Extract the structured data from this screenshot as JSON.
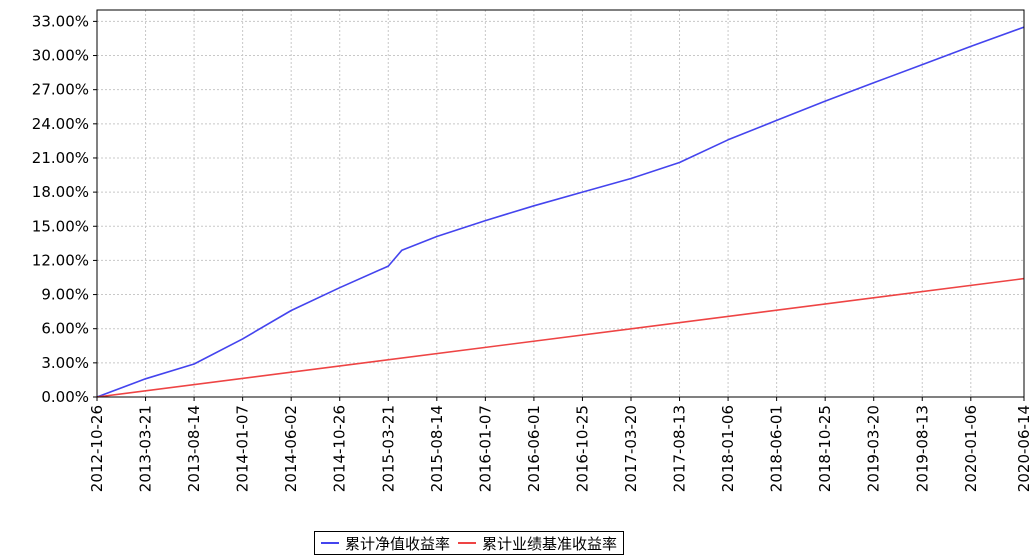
{
  "chart_data": {
    "type": "line",
    "title": "",
    "xlabel": "",
    "ylabel": "",
    "x_ticks": [
      "2012-10-26",
      "2013-03-21",
      "2013-08-14",
      "2014-01-07",
      "2014-06-02",
      "2014-10-26",
      "2015-03-21",
      "2015-08-14",
      "2016-01-07",
      "2016-06-01",
      "2016-10-25",
      "2017-03-20",
      "2017-08-13",
      "2018-01-06",
      "2018-06-01",
      "2018-10-25",
      "2019-03-20",
      "2019-08-13",
      "2020-01-06",
      "2020-06-14"
    ],
    "y_ticks": [
      "0.00%",
      "3.00%",
      "6.00%",
      "9.00%",
      "12.00%",
      "15.00%",
      "18.00%",
      "21.00%",
      "24.00%",
      "27.00%",
      "30.00%",
      "33.00%"
    ],
    "ylim": [
      0,
      34
    ],
    "y_unit": "%",
    "grid": true,
    "legend_position": "bottom",
    "series": [
      {
        "name": "累计净值收益率",
        "color": "#4444ee",
        "x": [
          "2012-10-26",
          "2013-03-21",
          "2013-08-14",
          "2014-01-07",
          "2014-06-02",
          "2014-10-26",
          "2015-03-21",
          "2015-05-01",
          "2015-08-14",
          "2016-01-07",
          "2016-06-01",
          "2016-10-25",
          "2017-03-20",
          "2017-08-13",
          "2018-01-06",
          "2018-06-01",
          "2018-10-25",
          "2019-03-20",
          "2019-08-13",
          "2020-01-06",
          "2020-06-14"
        ],
        "values": [
          0.0,
          1.6,
          2.9,
          5.1,
          7.6,
          9.6,
          11.5,
          12.9,
          14.1,
          15.5,
          16.8,
          18.0,
          19.2,
          20.6,
          22.6,
          24.3,
          26.0,
          27.6,
          29.2,
          30.8,
          32.5
        ]
      },
      {
        "name": "累计业绩基准收益率",
        "color": "#ee4444",
        "x": [
          "2012-10-26",
          "2020-06-14"
        ],
        "values": [
          0.0,
          10.4
        ]
      }
    ]
  }
}
